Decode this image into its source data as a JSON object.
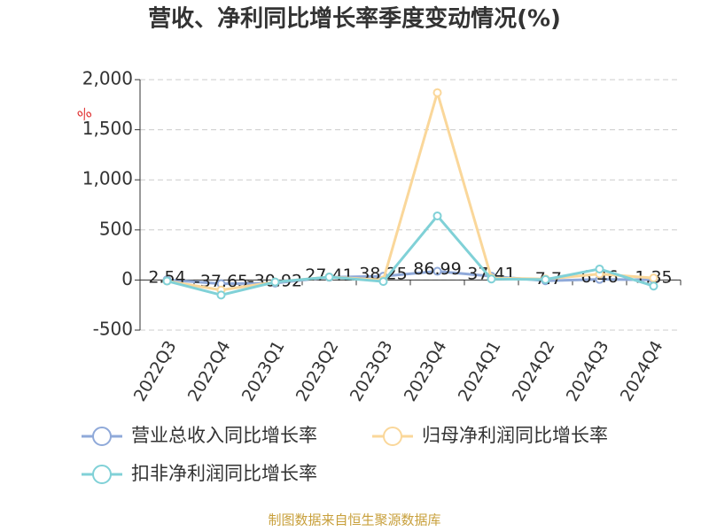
{
  "chart_data": {
    "type": "line",
    "title": "营收、净利同比增长率季度变动情况(%)",
    "y_unit": "%",
    "categories": [
      "2022Q3",
      "2022Q4",
      "2023Q1",
      "2023Q2",
      "2023Q3",
      "2023Q4",
      "2024Q1",
      "2024Q2",
      "2024Q3",
      "2024Q4"
    ],
    "series": [
      {
        "name": "营业总收入同比增长率",
        "color": "#8fa9d9",
        "labels": true,
        "values": [
          2.54,
          -37.65,
          -30.92,
          27.41,
          38.25,
          86.99,
          37.41,
          -7.7,
          6.46,
          1.35
        ]
      },
      {
        "name": "归母净利润同比增长率",
        "color": "#fad79a",
        "labels": false,
        "values": [
          -10,
          -100,
          -20,
          30,
          0,
          1870,
          20,
          10,
          60,
          20
        ]
      },
      {
        "name": "扣非净利润同比增长率",
        "color": "#80d1d7",
        "labels": false,
        "values": [
          -10,
          -150,
          -20,
          30,
          -15,
          640,
          10,
          5,
          110,
          -60
        ]
      }
    ],
    "ylim": [
      -500,
      2000
    ],
    "yticks": [
      -500,
      0,
      500,
      {
        "value": 1000,
        "label": "1,000"
      },
      {
        "value": 1500,
        "label": "1,500"
      },
      {
        "value": 2000,
        "label": "2,000"
      }
    ],
    "grid": true,
    "source": "制图数据来自恒生聚源数据库"
  }
}
